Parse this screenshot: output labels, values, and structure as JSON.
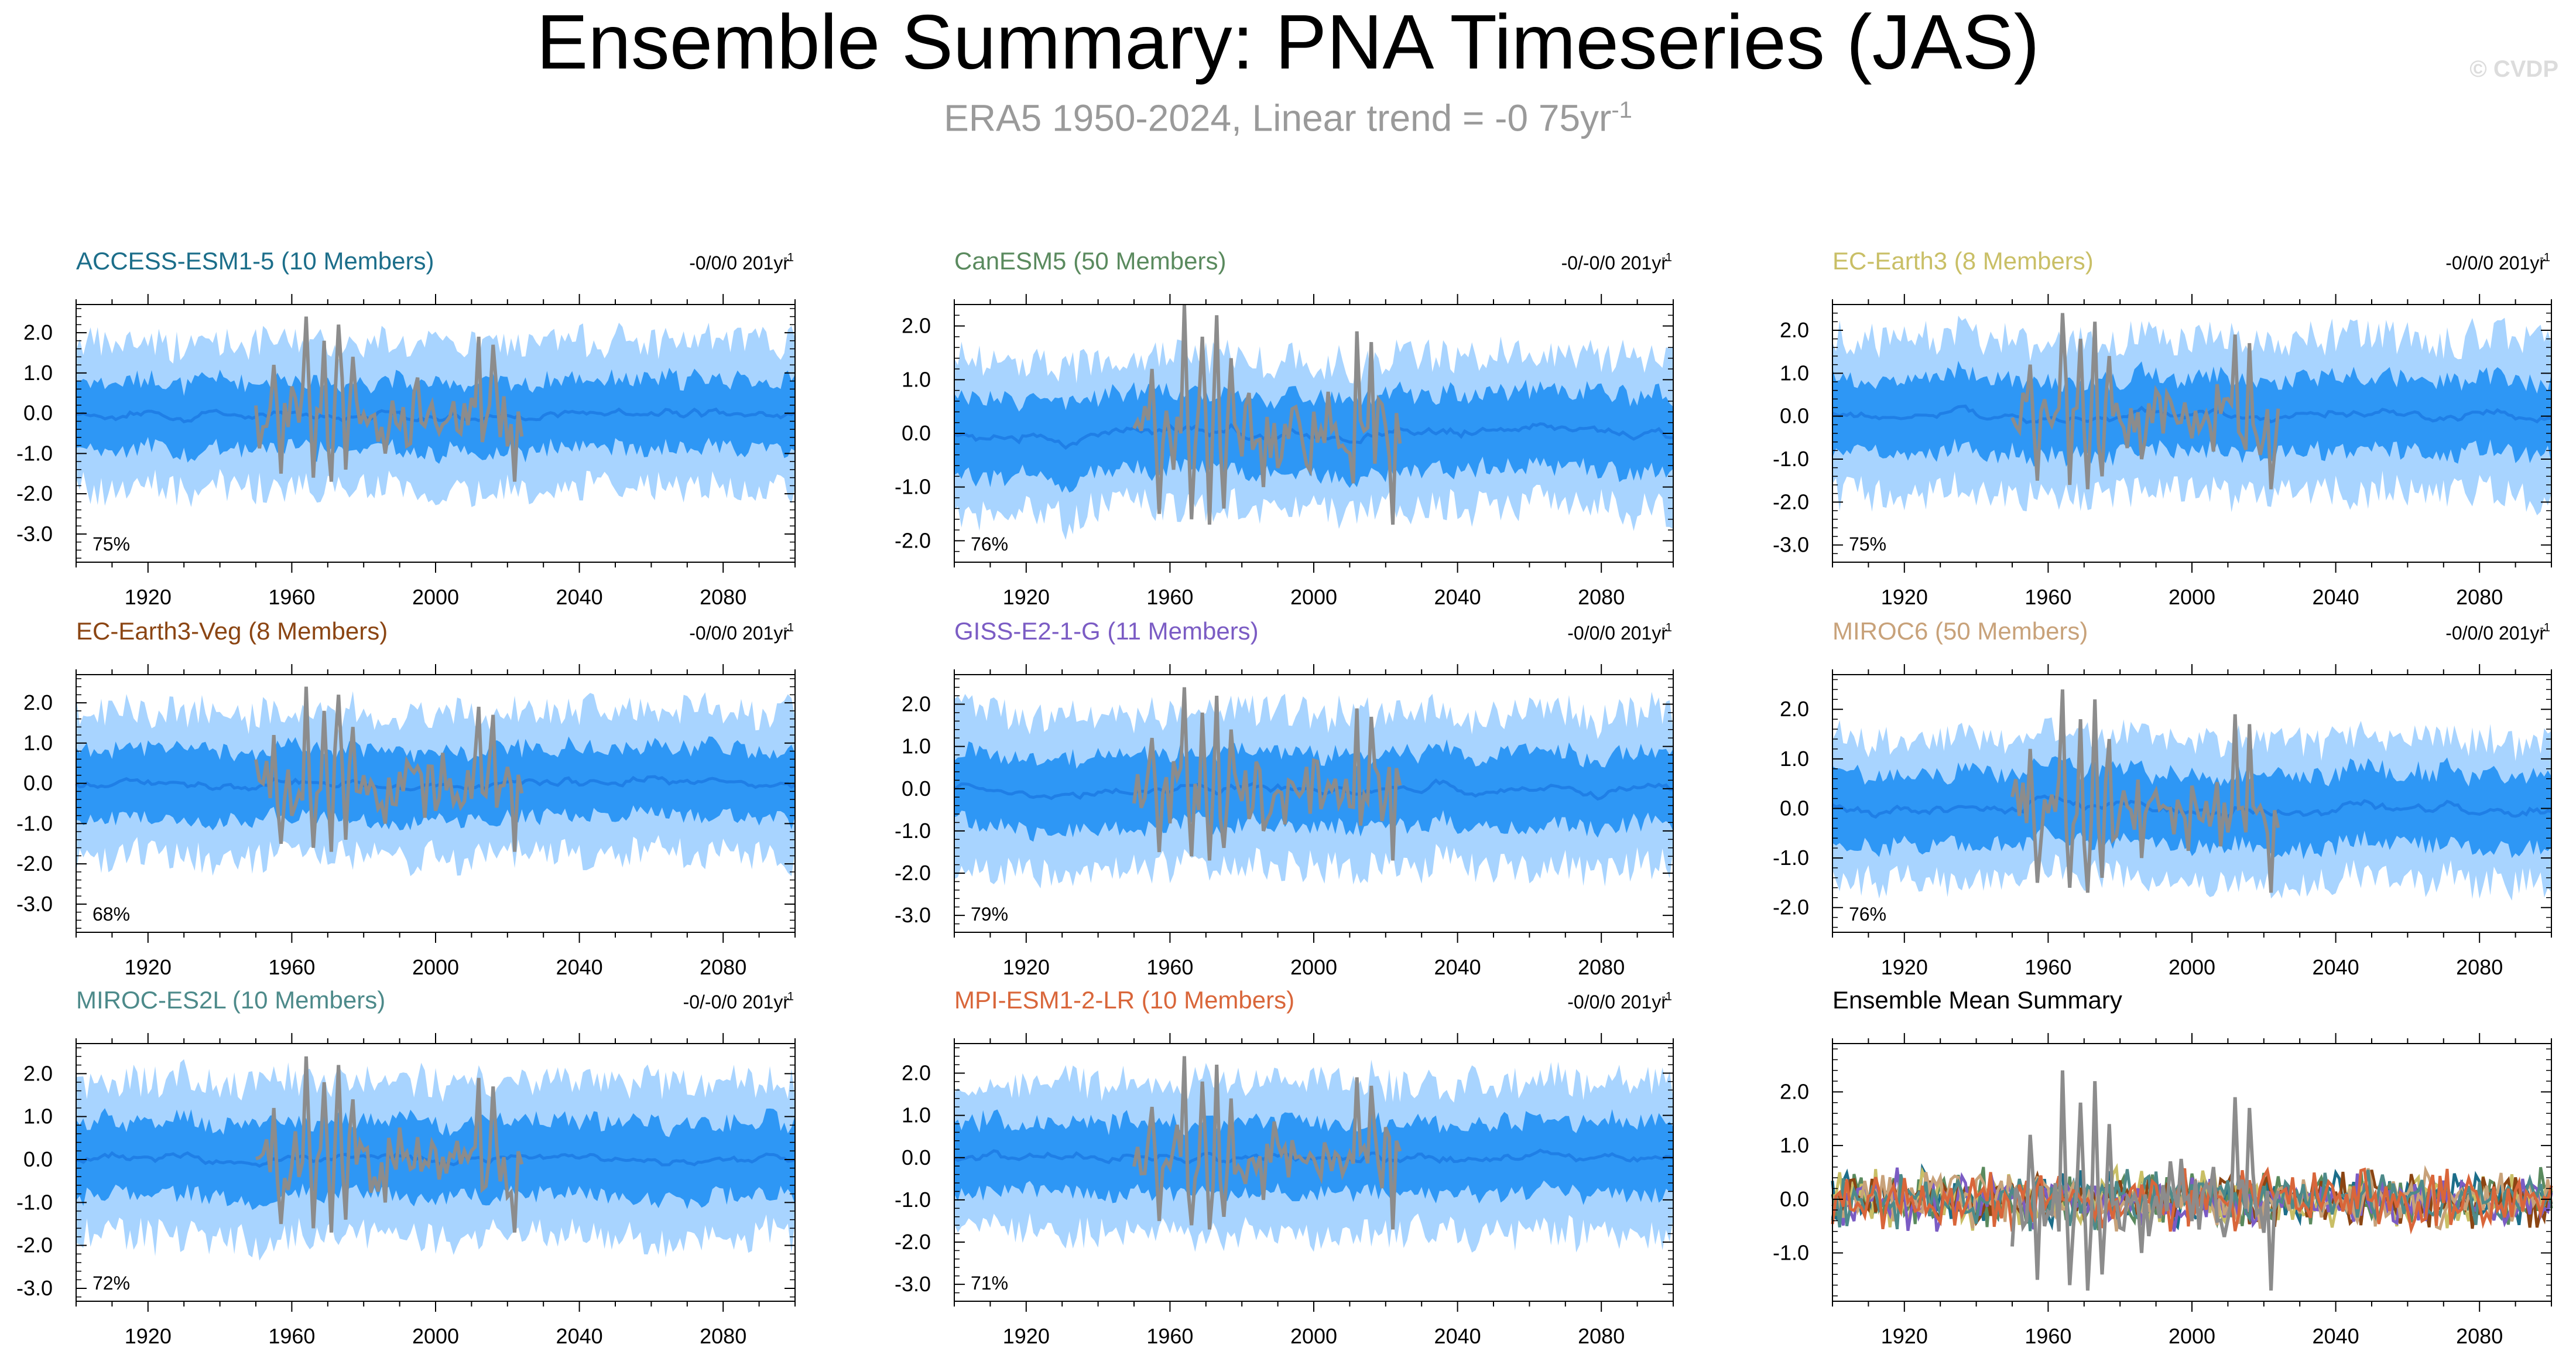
{
  "header": {
    "title": "Ensemble Summary: PNA Timeseries (JAS)",
    "subtitle_main": "ERA5 1950-2024, Linear trend = -0 75yr",
    "subtitle_sup": "-1",
    "watermark": "© CVDP"
  },
  "colors": {
    "band_outer": "#a8d4ff",
    "band_inner": "#2e97f5",
    "ens_mean_line": "#1f7fe6",
    "obs_line": "#8c8c8c"
  },
  "chart_data": [
    {
      "type": "area",
      "title": "ACCESS-ESM1-5 (10 Members)",
      "title_color": "#1c6e8a",
      "trend": "-0/0/0 201yr",
      "trend_sup": "-1",
      "percent": "75%",
      "x_range": [
        1900,
        2100
      ],
      "x_ticks": [
        "1920",
        "1960",
        "2000",
        "2040",
        "2080"
      ],
      "y_range": [
        -3.7,
        2.7
      ],
      "y_ticks": [
        "2.0",
        "1.0",
        "0.0",
        "-1.0",
        "-2.0",
        "-3.0"
      ],
      "band_outer": [
        -1.8,
        1.9
      ],
      "band_inner": [
        -0.9,
        0.9
      ],
      "observations": {
        "name": "ERA5",
        "x_range": [
          1950,
          2024
        ],
        "value_range": [
          -1.7,
          2.4
        ]
      }
    },
    {
      "type": "area",
      "title": "CanESM5 (50 Members)",
      "title_color": "#5a8a5e",
      "trend": "-0/-0/0 201yr",
      "trend_sup": "-1",
      "percent": "76%",
      "x_range": [
        1900,
        2100
      ],
      "x_ticks": [
        "1920",
        "1960",
        "2000",
        "2040",
        "2080"
      ],
      "y_range": [
        -2.4,
        2.4
      ],
      "y_ticks": [
        "2.0",
        "1.0",
        "0.0",
        "-1.0",
        "-2.0"
      ],
      "band_outer": [
        -1.4,
        1.5
      ],
      "band_inner": [
        -0.7,
        0.8
      ],
      "observations": {
        "name": "ERA5",
        "x_range": [
          1950,
          2024
        ],
        "value_range": [
          -1.7,
          2.4
        ]
      }
    },
    {
      "type": "area",
      "title": "EC-Earth3 (8 Members)",
      "title_color": "#c9bf66",
      "trend": "-0/0/0 201yr",
      "trend_sup": "-1",
      "percent": "75%",
      "x_range": [
        1900,
        2100
      ],
      "x_ticks": [
        "1920",
        "1960",
        "2000",
        "2040",
        "2080"
      ],
      "y_range": [
        -3.4,
        2.6
      ],
      "y_ticks": [
        "2.0",
        "1.0",
        "0.0",
        "-1.0",
        "-2.0",
        "-3.0"
      ],
      "band_outer": [
        -1.8,
        1.9
      ],
      "band_inner": [
        -0.9,
        0.9
      ],
      "observations": {
        "name": "ERA5",
        "x_range": [
          1950,
          2024
        ],
        "value_range": [
          -1.7,
          2.4
        ]
      }
    },
    {
      "type": "area",
      "title": "EC-Earth3-Veg (8 Members)",
      "title_color": "#8b4513",
      "trend": "-0/0/0 201yr",
      "trend_sup": "-1",
      "percent": "68%",
      "x_range": [
        1900,
        2100
      ],
      "x_ticks": [
        "1920",
        "1960",
        "2000",
        "2040",
        "2080"
      ],
      "y_range": [
        -3.7,
        2.7
      ],
      "y_ticks": [
        "2.0",
        "1.0",
        "0.0",
        "-1.0",
        "-2.0",
        "-3.0"
      ],
      "band_outer": [
        -1.8,
        1.9
      ],
      "band_inner": [
        -0.9,
        0.9
      ],
      "observations": {
        "name": "ERA5",
        "x_range": [
          1950,
          2024
        ],
        "value_range": [
          -1.7,
          2.4
        ]
      }
    },
    {
      "type": "area",
      "title": "GISS-E2-1-G (11 Members)",
      "title_color": "#7b5cc4",
      "trend": "-0/0/0 201yr",
      "trend_sup": "-1",
      "percent": "79%",
      "x_range": [
        1900,
        2100
      ],
      "x_ticks": [
        "1920",
        "1960",
        "2000",
        "2040",
        "2080"
      ],
      "y_range": [
        -3.4,
        2.7
      ],
      "y_ticks": [
        "2.0",
        "1.0",
        "0.0",
        "-1.0",
        "-2.0",
        "-3.0"
      ],
      "band_outer": [
        -1.8,
        1.9
      ],
      "band_inner": [
        -0.9,
        0.9
      ],
      "observations": {
        "name": "ERA5",
        "x_range": [
          1950,
          2024
        ],
        "value_range": [
          -1.7,
          2.4
        ]
      }
    },
    {
      "type": "area",
      "title": "MIROC6 (50 Members)",
      "title_color": "#c8a27a",
      "trend": "-0/0/0 201yr",
      "trend_sup": "-1",
      "percent": "76%",
      "x_range": [
        1900,
        2100
      ],
      "x_ticks": [
        "1920",
        "1960",
        "2000",
        "2040",
        "2080"
      ],
      "y_range": [
        -2.5,
        2.7
      ],
      "y_ticks": [
        "2.0",
        "1.0",
        "0.0",
        "-1.0",
        "-2.0"
      ],
      "band_outer": [
        -1.4,
        1.5
      ],
      "band_inner": [
        -0.7,
        0.8
      ],
      "observations": {
        "name": "ERA5",
        "x_range": [
          1950,
          2024
        ],
        "value_range": [
          -1.7,
          2.4
        ]
      }
    },
    {
      "type": "area",
      "title": "MIROC-ES2L (10 Members)",
      "title_color": "#4d8a8a",
      "trend": "-0/-0/0 201yr",
      "trend_sup": "-1",
      "percent": "72%",
      "x_range": [
        1900,
        2100
      ],
      "x_ticks": [
        "1920",
        "1960",
        "2000",
        "2040",
        "2080"
      ],
      "y_range": [
        -3.3,
        2.7
      ],
      "y_ticks": [
        "2.0",
        "1.0",
        "0.0",
        "-1.0",
        "-2.0",
        "-3.0"
      ],
      "band_outer": [
        -1.8,
        1.9
      ],
      "band_inner": [
        -0.9,
        0.9
      ],
      "observations": {
        "name": "ERA5",
        "x_range": [
          1950,
          2024
        ],
        "value_range": [
          -1.7,
          2.4
        ]
      }
    },
    {
      "type": "area",
      "title": "MPI-ESM1-2-LR (10 Members)",
      "title_color": "#d9663a",
      "trend": "-0/0/0 201yr",
      "trend_sup": "-1",
      "percent": "71%",
      "x_range": [
        1900,
        2100
      ],
      "x_ticks": [
        "1920",
        "1960",
        "2000",
        "2040",
        "2080"
      ],
      "y_range": [
        -3.4,
        2.7
      ],
      "y_ticks": [
        "2.0",
        "1.0",
        "0.0",
        "-1.0",
        "-2.0",
        "-3.0"
      ],
      "band_outer": [
        -1.8,
        1.9
      ],
      "band_inner": [
        -0.9,
        0.9
      ],
      "observations": {
        "name": "ERA5",
        "x_range": [
          1950,
          2024
        ],
        "value_range": [
          -1.7,
          2.4
        ]
      }
    },
    {
      "type": "line",
      "title": "Ensemble Mean Summary",
      "title_color": "#000000",
      "trend": "",
      "trend_sup": "",
      "percent": "",
      "x_range": [
        1900,
        2100
      ],
      "x_ticks": [
        "1920",
        "1960",
        "2000",
        "2040",
        "2080"
      ],
      "y_range": [
        -1.9,
        2.9
      ],
      "y_ticks": [
        "2.0",
        "1.0",
        "0.0",
        "-1.0"
      ],
      "series": [
        {
          "name": "ACCESS-ESM1-5",
          "color": "#1c6e8a"
        },
        {
          "name": "CanESM5",
          "color": "#5a8a5e"
        },
        {
          "name": "EC-Earth3",
          "color": "#c9bf66"
        },
        {
          "name": "EC-Earth3-Veg",
          "color": "#8b4513"
        },
        {
          "name": "GISS-E2-1-G",
          "color": "#7b5cc4"
        },
        {
          "name": "MIROC6",
          "color": "#c8a27a"
        },
        {
          "name": "MIROC-ES2L",
          "color": "#4d8a8a"
        },
        {
          "name": "MPI-ESM1-2-LR",
          "color": "#d9663a"
        }
      ],
      "series_range": [
        -0.6,
        0.6
      ],
      "observations": {
        "name": "ERA5",
        "x_range": [
          1950,
          2024
        ],
        "value_range": [
          -1.7,
          2.4
        ]
      }
    }
  ]
}
